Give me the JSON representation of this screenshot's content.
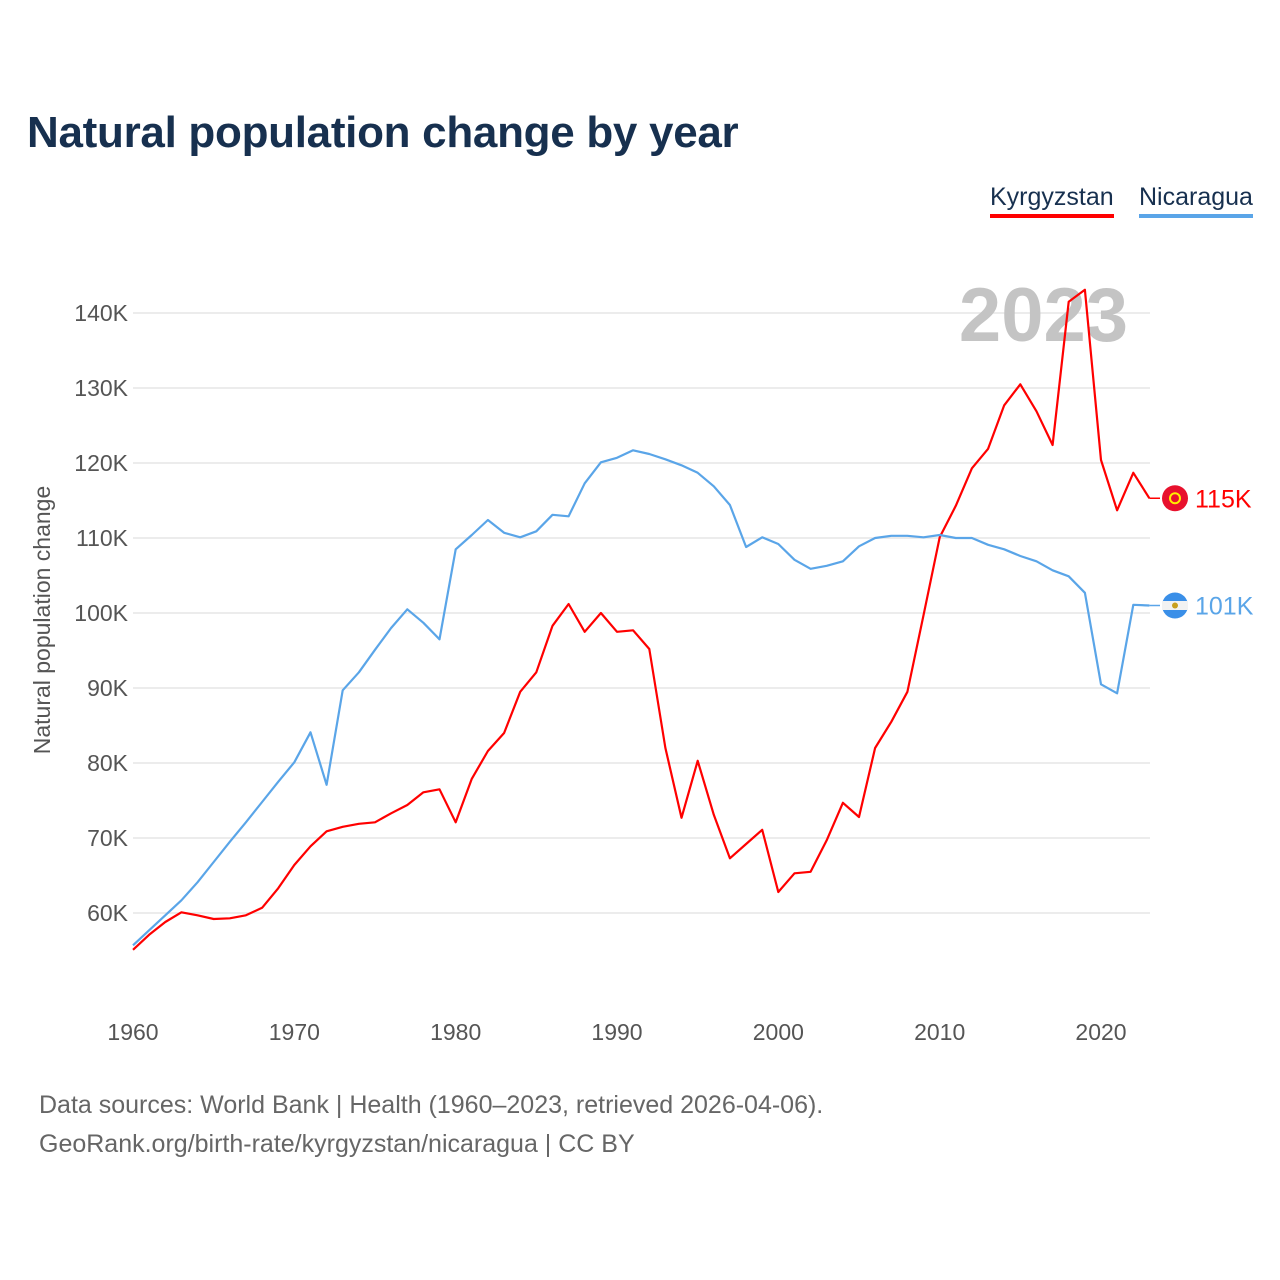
{
  "title": "Natural population change by year",
  "legend": [
    {
      "label": "Kyrgyzstan",
      "color": "#ff0000"
    },
    {
      "label": "Nicaragua",
      "color": "#5aa5e8"
    }
  ],
  "year_watermark": "2023",
  "end_labels": {
    "kyrgyzstan": "115K",
    "nicaragua": "101K"
  },
  "flags": {
    "kyrgyzstan": "kyrgyzstan-flag-icon",
    "nicaragua": "nicaragua-flag-icon"
  },
  "footer": {
    "line1": "Data sources: World Bank | Health (1960–2023, retrieved 2026-04-06).",
    "line2": "GeoRank.org/birth-rate/kyrgyzstan/nicaragua | CC BY"
  },
  "chart_data": {
    "type": "line",
    "title": "Natural population change by year",
    "xlabel": "",
    "ylabel": "Natural population change",
    "xlim": [
      1960,
      2023
    ],
    "ylim": [
      50000,
      145000
    ],
    "grid": true,
    "legend_position": "top-right",
    "x_ticks": [
      1960,
      1970,
      1980,
      1990,
      2000,
      2010,
      2020
    ],
    "y_ticks": [
      60000,
      70000,
      80000,
      90000,
      100000,
      110000,
      120000,
      130000,
      140000
    ],
    "y_tick_labels": [
      "60K",
      "70K",
      "80K",
      "90K",
      "100K",
      "110K",
      "120K",
      "130K",
      "140K"
    ],
    "x": [
      1960,
      1961,
      1962,
      1963,
      1964,
      1965,
      1966,
      1967,
      1968,
      1969,
      1970,
      1971,
      1972,
      1973,
      1974,
      1975,
      1976,
      1977,
      1978,
      1979,
      1980,
      1981,
      1982,
      1983,
      1984,
      1985,
      1986,
      1987,
      1988,
      1989,
      1990,
      1991,
      1992,
      1993,
      1994,
      1995,
      1996,
      1997,
      1998,
      1999,
      2000,
      2001,
      2002,
      2003,
      2004,
      2005,
      2006,
      2007,
      2008,
      2009,
      2010,
      2011,
      2012,
      2013,
      2014,
      2015,
      2016,
      2017,
      2018,
      2019,
      2020,
      2021,
      2022,
      2023
    ],
    "series": [
      {
        "name": "Kyrgyzstan",
        "color": "#ff0000",
        "values": [
          55100,
          57100,
          58800,
          60100,
          59700,
          59200,
          59300,
          59700,
          60700,
          63300,
          66400,
          68900,
          70900,
          71500,
          71900,
          72100,
          73300,
          74400,
          76100,
          76500,
          72100,
          77900,
          81600,
          84000,
          89500,
          92100,
          98300,
          101200,
          97500,
          100000,
          97500,
          97700,
          95200,
          82000,
          72700,
          80300,
          73100,
          67300,
          69200,
          71100,
          62800,
          65300,
          65500,
          69700,
          74700,
          72800,
          82000,
          85500,
          89500,
          99700,
          110100,
          114300,
          119300,
          121900,
          127700,
          130500,
          126900,
          122400,
          141500,
          143100,
          120400,
          113700,
          118700,
          115300
        ]
      },
      {
        "name": "Nicaragua",
        "color": "#5aa5e8",
        "values": [
          55700,
          57700,
          59700,
          61700,
          64100,
          66800,
          69500,
          72100,
          74800,
          77500,
          80100,
          84100,
          77100,
          89700,
          92100,
          95100,
          98000,
          100500,
          98700,
          96500,
          108500,
          110400,
          112400,
          110700,
          110100,
          110900,
          113100,
          112900,
          117300,
          120100,
          120700,
          121700,
          121200,
          120500,
          119700,
          118700,
          116900,
          114400,
          108800,
          110100,
          109200,
          107100,
          105900,
          106300,
          106900,
          108900,
          110000,
          110300,
          110300,
          110100,
          110400,
          110000,
          110000,
          109100,
          108500,
          107600,
          106900,
          105700,
          104900,
          102700,
          90500,
          89300,
          101100,
          101000
        ]
      }
    ]
  }
}
